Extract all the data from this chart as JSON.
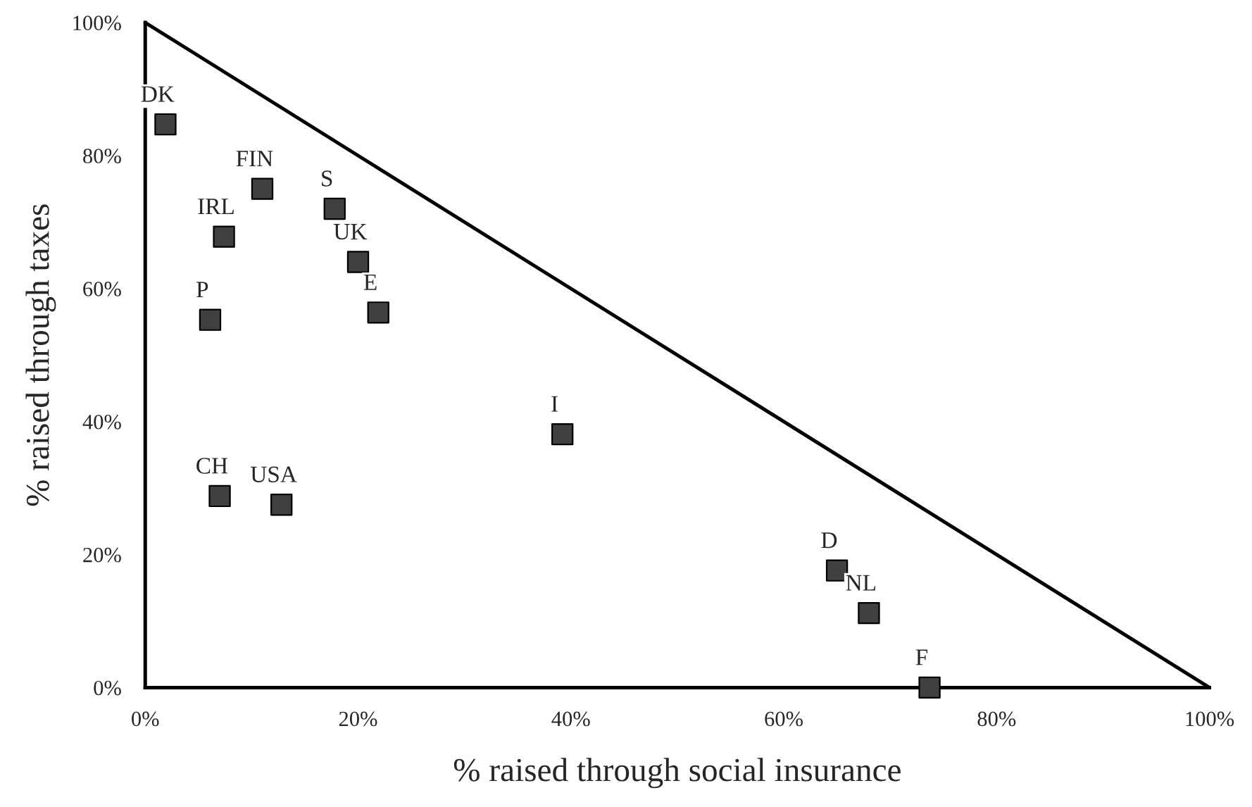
{
  "chart_data": {
    "type": "scatter",
    "xlabel": "% raised through social insurance",
    "ylabel": "% raised through taxes",
    "xlim": [
      0,
      100
    ],
    "ylim": [
      0,
      100
    ],
    "xticks": [
      {
        "value": 0,
        "label": "0%"
      },
      {
        "value": 20,
        "label": "20%"
      },
      {
        "value": 40,
        "label": "40%"
      },
      {
        "value": 60,
        "label": "60%"
      },
      {
        "value": 80,
        "label": "80%"
      },
      {
        "value": 100,
        "label": "100%"
      }
    ],
    "yticks": [
      {
        "value": 0,
        "label": "0%"
      },
      {
        "value": 20,
        "label": "20%"
      },
      {
        "value": 40,
        "label": "40%"
      },
      {
        "value": 60,
        "label": "60%"
      },
      {
        "value": 80,
        "label": "80%"
      },
      {
        "value": 100,
        "label": "100%"
      }
    ],
    "grid": false,
    "legend": false,
    "series": [
      {
        "marker": "square",
        "color": "#404040",
        "x": [
          1.9,
          11.0,
          17.8,
          7.4,
          20.0,
          6.1,
          21.9,
          39.2,
          7.0,
          12.8,
          65.0,
          68.0,
          73.7
        ],
        "values": [
          84.7,
          75.0,
          72.0,
          67.8,
          64.0,
          55.3,
          56.4,
          38.1,
          28.8,
          27.5,
          17.6,
          11.2,
          0
        ]
      },
      {
        "type": "line",
        "marker": "none",
        "color": "#000000",
        "x": [
          0,
          100
        ],
        "values": [
          100,
          0
        ]
      }
    ],
    "annotations": [
      {
        "text": "DK",
        "x": 1.9,
        "y": 84.7
      },
      {
        "text": "FIN",
        "x": 11.0,
        "y": 75.0
      },
      {
        "text": "S",
        "x": 17.8,
        "y": 72.0
      },
      {
        "text": "IRL",
        "x": 7.4,
        "y": 67.8
      },
      {
        "text": "UK",
        "x": 20.0,
        "y": 64.0
      },
      {
        "text": "P",
        "x": 6.1,
        "y": 55.3
      },
      {
        "text": "E",
        "x": 21.9,
        "y": 56.4
      },
      {
        "text": "I",
        "x": 39.2,
        "y": 38.1
      },
      {
        "text": "CH",
        "x": 7.0,
        "y": 28.8
      },
      {
        "text": "USA",
        "x": 12.8,
        "y": 27.5
      },
      {
        "text": "D",
        "x": 65.0,
        "y": 17.6
      },
      {
        "text": "NL",
        "x": 68.0,
        "y": 11.2
      },
      {
        "text": "F",
        "x": 73.7,
        "y": 0
      }
    ]
  }
}
